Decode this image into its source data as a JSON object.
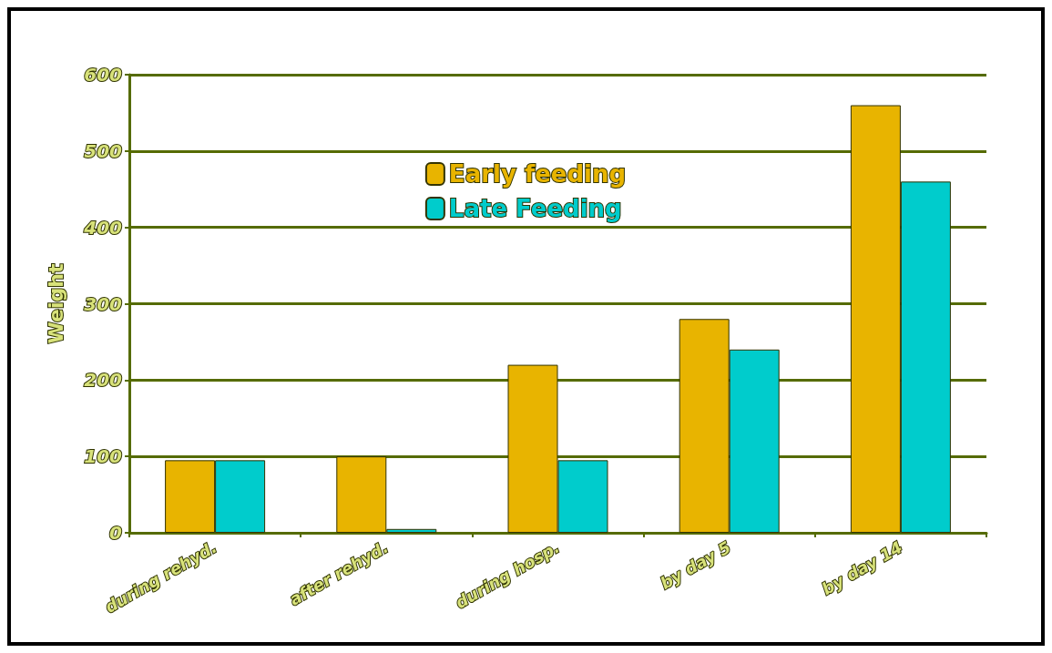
{
  "chart_data": {
    "type": "bar",
    "ylabel": "Weight",
    "categories": [
      "during rehyd.",
      "after rehyd.",
      "during hosp.",
      "by day 5",
      "by day 14"
    ],
    "series": [
      {
        "name": "Early feeding",
        "color": "#e8b400",
        "values": [
          95,
          100,
          220,
          280,
          560
        ]
      },
      {
        "name": "Late Feeding",
        "color": "#00cccc",
        "values": [
          95,
          5,
          95,
          240,
          460
        ]
      }
    ],
    "ylim": [
      0,
      600
    ],
    "yticks": [
      0,
      100,
      200,
      300,
      400,
      500,
      600
    ],
    "grid": "y",
    "legend": "top"
  }
}
